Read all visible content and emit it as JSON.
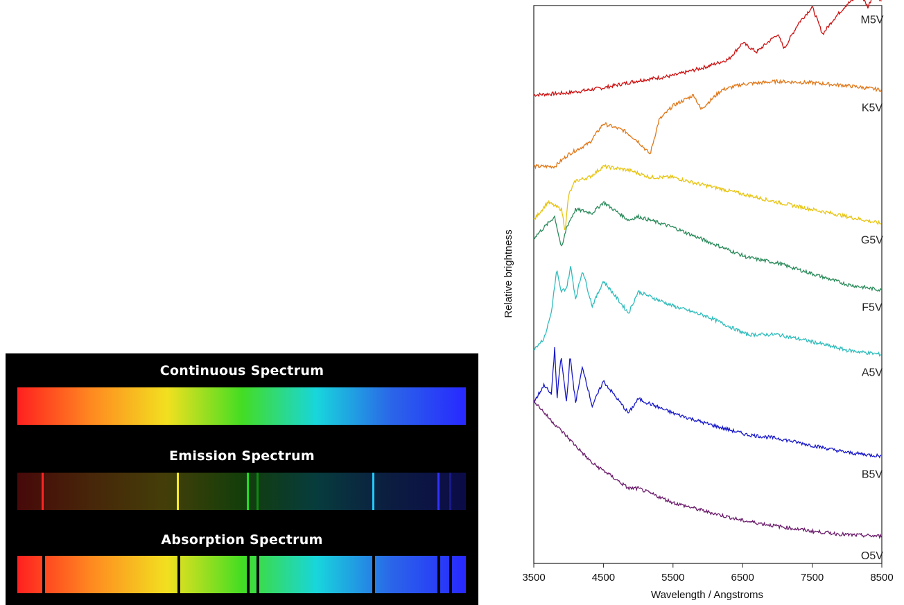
{
  "spectra_panel": {
    "continuous_title": "Continuous Spectrum",
    "emission_title": "Emission Spectrum",
    "absorption_title": "Absorption Spectrum",
    "gradient_colors": [
      "#ff2020",
      "#ff8a20",
      "#f2e020",
      "#44dd22",
      "#18d6dc",
      "#2a66e8",
      "#2828ff"
    ],
    "emission_lines": [
      {
        "pos": 0.054,
        "color": "#ff2424"
      },
      {
        "pos": 0.356,
        "color": "#ffee22"
      },
      {
        "pos": 0.511,
        "color": "#22dd22"
      },
      {
        "pos": 0.533,
        "color": "#118811"
      },
      {
        "pos": 0.791,
        "color": "#22ccff"
      },
      {
        "pos": 0.937,
        "color": "#3232ff"
      },
      {
        "pos": 0.963,
        "color": "#1a1a88"
      }
    ],
    "absorption_lines": [
      0.056,
      0.357,
      0.511,
      0.533,
      0.791,
      0.937,
      0.963
    ]
  },
  "chart_data": {
    "type": "line",
    "xlabel": "Wavelength / Angstroms",
    "ylabel": "Relative brightness",
    "xlim": [
      3500,
      8500
    ],
    "ylim": [
      0,
      7.8
    ],
    "xticks": [
      3500,
      4500,
      5500,
      6500,
      7500,
      8500
    ],
    "grid": false,
    "series": [
      {
        "name": "M5V",
        "color": "#cc1111",
        "points": [
          [
            3500,
            6.55
          ],
          [
            4000,
            6.58
          ],
          [
            4500,
            6.65
          ],
          [
            5000,
            6.75
          ],
          [
            5500,
            6.82
          ],
          [
            6000,
            6.95
          ],
          [
            6300,
            7.05
          ],
          [
            6500,
            7.28
          ],
          [
            6700,
            7.15
          ],
          [
            7000,
            7.4
          ],
          [
            7100,
            7.2
          ],
          [
            7300,
            7.55
          ],
          [
            7500,
            7.78
          ],
          [
            7650,
            7.4
          ],
          [
            7800,
            7.6
          ],
          [
            8000,
            7.82
          ],
          [
            8200,
            7.95
          ],
          [
            8300,
            7.78
          ],
          [
            8400,
            8.0
          ],
          [
            8500,
            7.85
          ]
        ]
      },
      {
        "name": "K5V",
        "color": "#e07718",
        "points": [
          [
            3500,
            5.55
          ],
          [
            3800,
            5.55
          ],
          [
            4000,
            5.72
          ],
          [
            4300,
            5.88
          ],
          [
            4500,
            6.15
          ],
          [
            4800,
            6.05
          ],
          [
            5000,
            5.9
          ],
          [
            5170,
            5.72
          ],
          [
            5300,
            6.2
          ],
          [
            5500,
            6.4
          ],
          [
            5800,
            6.55
          ],
          [
            5900,
            6.35
          ],
          [
            6200,
            6.62
          ],
          [
            6500,
            6.7
          ],
          [
            7000,
            6.74
          ],
          [
            7500,
            6.72
          ],
          [
            8000,
            6.68
          ],
          [
            8500,
            6.62
          ]
        ]
      },
      {
        "name": "G5V",
        "color": "#e8c410",
        "points": [
          [
            3500,
            4.8
          ],
          [
            3700,
            5.05
          ],
          [
            3900,
            4.95
          ],
          [
            3950,
            4.65
          ],
          [
            4000,
            5.15
          ],
          [
            4100,
            5.35
          ],
          [
            4300,
            5.4
          ],
          [
            4500,
            5.55
          ],
          [
            4861,
            5.5
          ],
          [
            5170,
            5.4
          ],
          [
            5500,
            5.4
          ],
          [
            5890,
            5.3
          ],
          [
            6000,
            5.28
          ],
          [
            6563,
            5.15
          ],
          [
            7000,
            5.05
          ],
          [
            7500,
            4.95
          ],
          [
            8000,
            4.85
          ],
          [
            8500,
            4.75
          ]
        ]
      },
      {
        "name": "F5V",
        "color": "#2a8a5a",
        "points": [
          [
            3500,
            4.55
          ],
          [
            3650,
            4.7
          ],
          [
            3800,
            4.85
          ],
          [
            3900,
            4.4
          ],
          [
            3970,
            4.7
          ],
          [
            4100,
            4.95
          ],
          [
            4340,
            4.9
          ],
          [
            4500,
            5.05
          ],
          [
            4861,
            4.8
          ],
          [
            5000,
            4.85
          ],
          [
            5500,
            4.7
          ],
          [
            6000,
            4.5
          ],
          [
            6563,
            4.28
          ],
          [
            7000,
            4.2
          ],
          [
            7500,
            4.05
          ],
          [
            8000,
            3.9
          ],
          [
            8500,
            3.82
          ]
        ]
      },
      {
        "name": "A5V",
        "color": "#2fbcbc",
        "points": [
          [
            3500,
            3.0
          ],
          [
            3650,
            3.15
          ],
          [
            3750,
            3.5
          ],
          [
            3830,
            4.1
          ],
          [
            3889,
            3.8
          ],
          [
            3970,
            3.85
          ],
          [
            4030,
            4.15
          ],
          [
            4101,
            3.7
          ],
          [
            4200,
            4.1
          ],
          [
            4340,
            3.6
          ],
          [
            4500,
            3.95
          ],
          [
            4861,
            3.5
          ],
          [
            5000,
            3.8
          ],
          [
            5500,
            3.6
          ],
          [
            6000,
            3.45
          ],
          [
            6563,
            3.2
          ],
          [
            7000,
            3.2
          ],
          [
            7500,
            3.1
          ],
          [
            8000,
            2.98
          ],
          [
            8500,
            2.92
          ]
        ]
      },
      {
        "name": "B5V",
        "color": "#1818c8",
        "points": [
          [
            3500,
            2.25
          ],
          [
            3650,
            2.5
          ],
          [
            3750,
            2.35
          ],
          [
            3800,
            3.0
          ],
          [
            3835,
            2.3
          ],
          [
            3890,
            2.9
          ],
          [
            3970,
            2.25
          ],
          [
            4020,
            2.9
          ],
          [
            4101,
            2.25
          ],
          [
            4200,
            2.75
          ],
          [
            4340,
            2.2
          ],
          [
            4500,
            2.55
          ],
          [
            4861,
            2.1
          ],
          [
            5000,
            2.3
          ],
          [
            5500,
            2.1
          ],
          [
            6000,
            1.95
          ],
          [
            6563,
            1.8
          ],
          [
            7000,
            1.75
          ],
          [
            7500,
            1.65
          ],
          [
            8000,
            1.55
          ],
          [
            8500,
            1.5
          ]
        ]
      },
      {
        "name": "O5V",
        "color": "#6a1a6a",
        "points": [
          [
            3500,
            2.28
          ],
          [
            3700,
            2.05
          ],
          [
            4000,
            1.75
          ],
          [
            4340,
            1.4
          ],
          [
            4500,
            1.3
          ],
          [
            4861,
            1.05
          ],
          [
            5000,
            1.05
          ],
          [
            5500,
            0.85
          ],
          [
            6000,
            0.72
          ],
          [
            6500,
            0.6
          ],
          [
            7000,
            0.52
          ],
          [
            7500,
            0.45
          ],
          [
            8000,
            0.4
          ],
          [
            8500,
            0.38
          ]
        ]
      }
    ]
  }
}
